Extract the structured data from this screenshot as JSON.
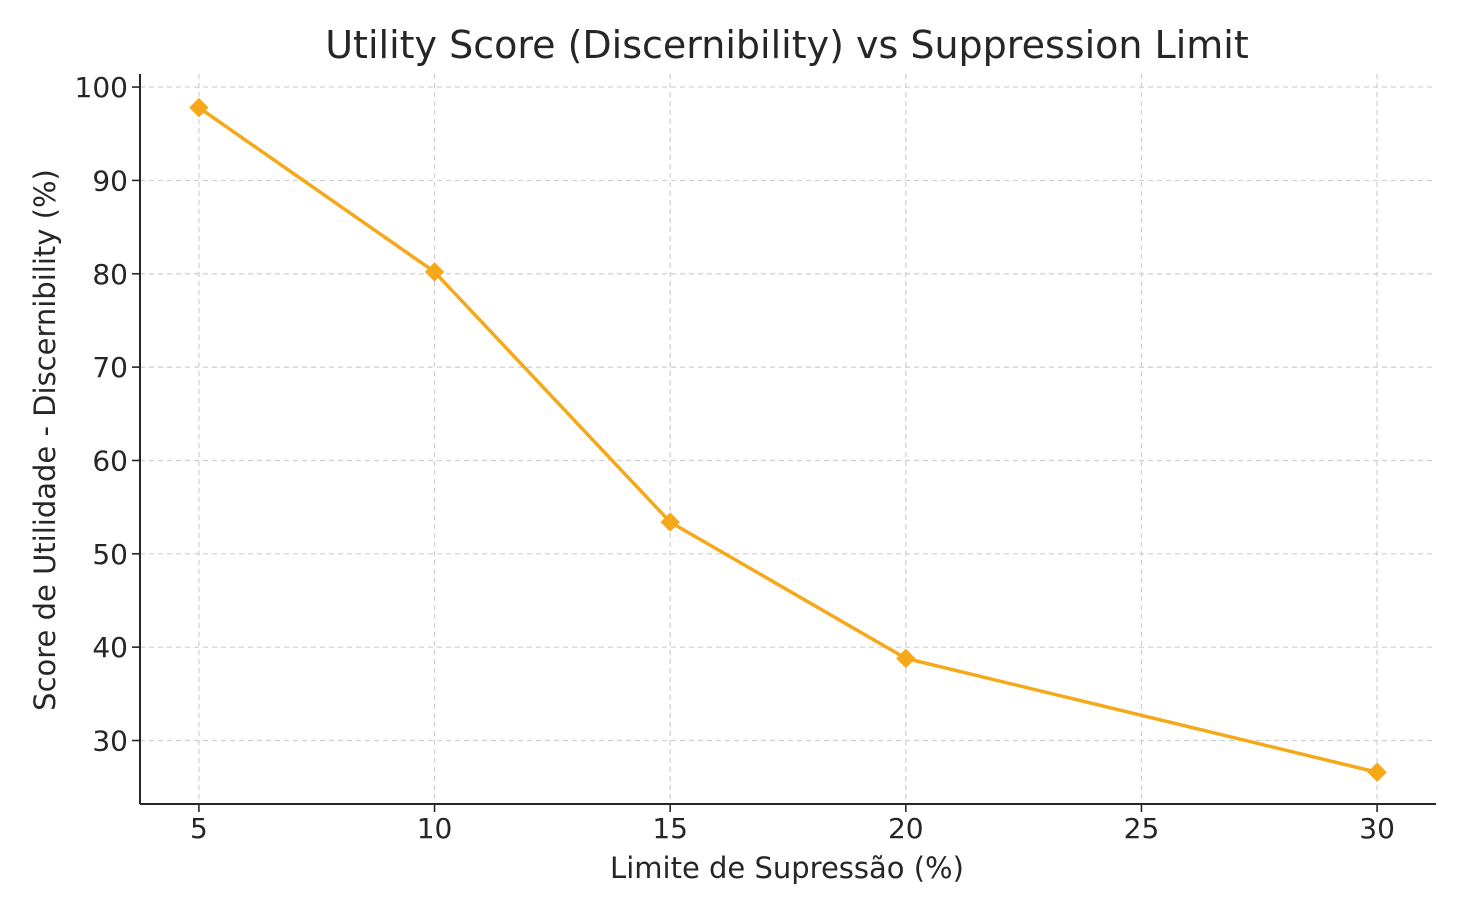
{
  "chart_data": {
    "type": "line",
    "title": "Utility Score (Discernibility) vs Suppression Limit",
    "xlabel": "Limite de Supressão (%)",
    "ylabel": "Score de Utilidade - Discernibility (%)",
    "x_ticks": [
      5,
      10,
      15,
      20,
      25,
      30
    ],
    "y_ticks": [
      30,
      40,
      50,
      60,
      70,
      80,
      90,
      100
    ],
    "xlim": [
      3.75,
      31.25
    ],
    "ylim": [
      23.2,
      101.4
    ],
    "grid": true,
    "marker": "diamond",
    "color": "#F5A91A",
    "series": [
      {
        "x": [
          5,
          10,
          15,
          20,
          30
        ],
        "values": [
          97.8,
          80.2,
          53.4,
          38.8,
          26.6
        ]
      }
    ]
  }
}
